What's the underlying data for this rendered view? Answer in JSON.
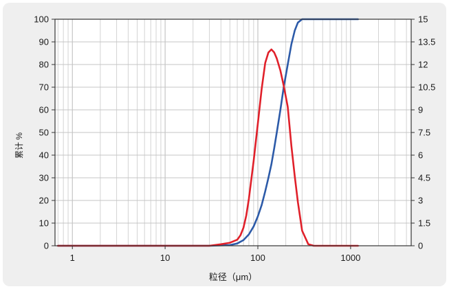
{
  "chart_data": {
    "type": "line",
    "xlabel": "粒径（μm）",
    "ylabel": "累计 %",
    "x_scale": "log",
    "xlim": [
      0.65,
      4500
    ],
    "ylim": [
      0,
      100
    ],
    "y2lim": [
      0,
      15
    ],
    "grid": true,
    "x_ticks": [
      "1",
      "10",
      "100",
      "1000"
    ],
    "y_ticks": [
      "0",
      "10",
      "20",
      "30",
      "40",
      "50",
      "60",
      "70",
      "80",
      "90",
      "100"
    ],
    "y2_ticks": [
      "0",
      "1.5",
      "3",
      "4.5",
      "6",
      "7.5",
      "9",
      "10.5",
      "12",
      "13.5",
      "15"
    ],
    "series": [
      {
        "axis": "left",
        "color": "#2c5aa8",
        "x": [
          0.7,
          1,
          10,
          30,
          50,
          60,
          70,
          80,
          90,
          100,
          110,
          120,
          130,
          140,
          150,
          160,
          175,
          190,
          210,
          230,
          250,
          270,
          300,
          400,
          600,
          1000,
          1200
        ],
        "values": [
          0,
          0,
          0,
          0,
          0.3,
          1,
          2.5,
          5,
          8.5,
          13,
          18,
          24,
          30,
          36,
          43,
          50,
          60,
          70,
          80,
          89,
          95,
          98.5,
          100,
          100,
          100,
          100,
          100
        ]
      },
      {
        "axis": "right",
        "color": "#e0202a",
        "x": [
          0.7,
          1,
          10,
          30,
          40,
          50,
          60,
          65,
          70,
          75,
          80,
          90,
          100,
          110,
          120,
          130,
          140,
          150,
          160,
          175,
          190,
          210,
          230,
          250,
          270,
          300,
          350,
          400,
          600,
          1000,
          1200
        ],
        "values": [
          0,
          0,
          0,
          0,
          0.1,
          0.2,
          0.4,
          0.7,
          1.2,
          2,
          3.1,
          5.6,
          8.1,
          10.4,
          12.1,
          12.8,
          13,
          12.8,
          12.4,
          11.6,
          10.6,
          9.2,
          6.6,
          4.6,
          2.9,
          1,
          0.1,
          0,
          0,
          0,
          0
        ]
      }
    ]
  }
}
